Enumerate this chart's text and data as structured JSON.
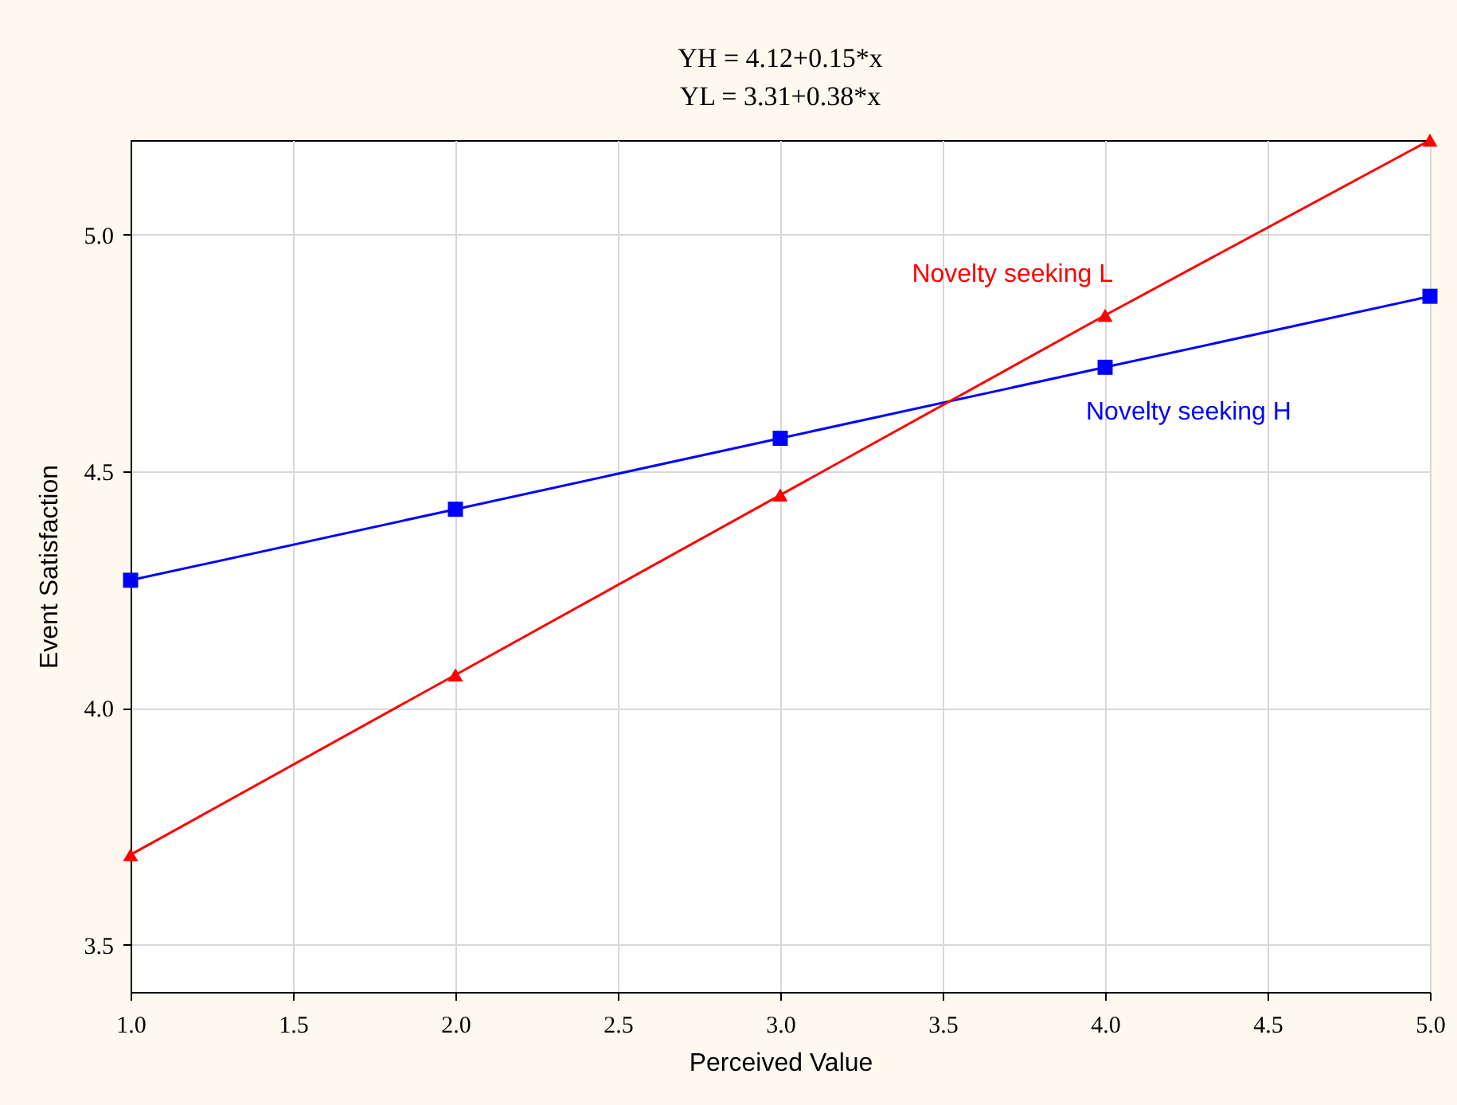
{
  "chart_data": {
    "type": "line",
    "title": [
      "YH = 4.12+0.15*x",
      "YL = 3.31+0.38*x"
    ],
    "xlabel": "Perceived Value",
    "ylabel": "Event Satisfaction",
    "x": [
      1,
      2,
      3,
      4,
      5
    ],
    "series": [
      {
        "name": "Novelty seeking H",
        "color": "#0000ff",
        "marker": "square",
        "values": [
          4.27,
          4.42,
          4.57,
          4.72,
          4.87
        ]
      },
      {
        "name": "Novelty seeking L",
        "color": "#ff0000",
        "marker": "triangle",
        "values": [
          3.69,
          4.07,
          4.45,
          4.83,
          5.2
        ]
      }
    ],
    "xlim": [
      1,
      5
    ],
    "ylim": [
      3.4,
      5.2
    ],
    "xticks": [
      {
        "value": 1,
        "label": "1.0"
      },
      1.5,
      {
        "value": 2,
        "label": "2.0"
      },
      2.5,
      {
        "value": 3,
        "label": "3.0"
      },
      3.5,
      {
        "value": 4,
        "label": "4.0"
      },
      4.5,
      {
        "value": 5,
        "label": "5.0"
      }
    ],
    "yticks": [
      3.5,
      {
        "value": 4,
        "label": "4.0"
      },
      4.5,
      {
        "value": 5,
        "label": "5.0"
      }
    ],
    "grid": true,
    "line_style": "solid"
  }
}
